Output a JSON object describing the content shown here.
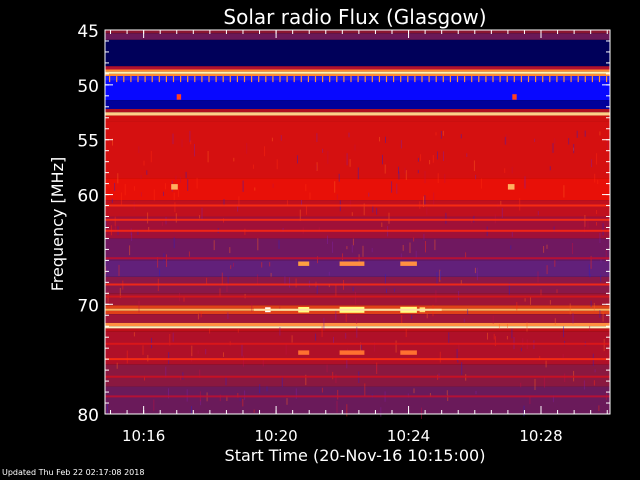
{
  "chart_data": {
    "type": "heatmap",
    "title": "Solar radio Flux (Glasgow)",
    "xlabel": "Start Time (20-Nov-16 10:15:00)",
    "ylabel": "Frequency [MHz]",
    "x_range": [
      "10:14:50",
      "10:30:05"
    ],
    "x_ticks": [
      {
        "time": "10:16",
        "label": "10:16"
      },
      {
        "time": "10:20",
        "label": "10:20"
      },
      {
        "time": "10:24",
        "label": "10:24"
      },
      {
        "time": "10:28",
        "label": "10:28"
      }
    ],
    "y_range": [
      45,
      80
    ],
    "y_ticks": [
      {
        "mhz": 45,
        "label": "45"
      },
      {
        "mhz": 50,
        "label": "50"
      },
      {
        "mhz": 55,
        "label": "55"
      },
      {
        "mhz": 60,
        "label": "60"
      },
      {
        "mhz": 70,
        "label": "70"
      },
      {
        "mhz": 80,
        "label": "80"
      }
    ],
    "bands": [
      {
        "from": 45.0,
        "to": 45.3,
        "color": "#8a1530"
      },
      {
        "from": 45.3,
        "to": 45.9,
        "color": "#6a1858"
      },
      {
        "from": 45.9,
        "to": 48.3,
        "color": "#00005a"
      },
      {
        "from": 48.3,
        "to": 48.6,
        "color": "#b01030"
      },
      {
        "from": 48.6,
        "to": 48.8,
        "color": "#ff8a30"
      },
      {
        "from": 48.8,
        "to": 49.0,
        "color": "#fff0b0"
      },
      {
        "from": 49.0,
        "to": 49.2,
        "color": "#ff8a30"
      },
      {
        "from": 49.2,
        "to": 49.6,
        "color": "#2020ff"
      },
      {
        "from": 49.6,
        "to": 51.4,
        "color": "#0808ff"
      },
      {
        "from": 51.4,
        "to": 52.2,
        "color": "#00009a"
      },
      {
        "from": 52.2,
        "to": 52.5,
        "color": "#b01020"
      },
      {
        "from": 52.5,
        "to": 52.8,
        "color": "#ffd088"
      },
      {
        "from": 52.8,
        "to": 53.3,
        "color": "#d01010"
      },
      {
        "from": 53.3,
        "to": 58.5,
        "color": "#d51010"
      },
      {
        "from": 58.5,
        "to": 60.5,
        "color": "#e81008"
      },
      {
        "from": 60.5,
        "to": 62.0,
        "color": "#c0101e"
      },
      {
        "from": 62.0,
        "to": 64.0,
        "color": "#a01038"
      },
      {
        "from": 64.0,
        "to": 66.0,
        "color": "#701860"
      },
      {
        "from": 66.0,
        "to": 67.5,
        "color": "#62207a"
      },
      {
        "from": 67.5,
        "to": 69.0,
        "color": "#8a1848"
      },
      {
        "from": 69.0,
        "to": 70.1,
        "color": "#a01535"
      },
      {
        "from": 70.1,
        "to": 70.4,
        "color": "#e04018"
      },
      {
        "from": 70.4,
        "to": 70.6,
        "color": "#ffb060"
      },
      {
        "from": 70.6,
        "to": 70.9,
        "color": "#e04018"
      },
      {
        "from": 70.9,
        "to": 71.7,
        "color": "#a01538"
      },
      {
        "from": 71.7,
        "to": 72.0,
        "color": "#ff9040"
      },
      {
        "from": 72.0,
        "to": 72.2,
        "color": "#fff0c0"
      },
      {
        "from": 72.2,
        "to": 72.5,
        "color": "#c01018"
      },
      {
        "from": 72.5,
        "to": 75.5,
        "color": "#b01028"
      },
      {
        "from": 75.5,
        "to": 77.5,
        "color": "#8a1840"
      },
      {
        "from": 77.5,
        "to": 80.0,
        "color": "#6a1a5a"
      }
    ],
    "hlines": [
      {
        "mhz": 61.0,
        "color": "#ff3010"
      },
      {
        "mhz": 62.3,
        "color": "#ff3010"
      },
      {
        "mhz": 63.3,
        "color": "#ff2a10"
      },
      {
        "mhz": 65.8,
        "color": "#c01030"
      },
      {
        "mhz": 68.2,
        "color": "#ff2a10"
      },
      {
        "mhz": 69.3,
        "color": "#d81818"
      },
      {
        "mhz": 73.6,
        "color": "#e01818"
      },
      {
        "mhz": 75.0,
        "color": "#ff3010"
      },
      {
        "mhz": 76.6,
        "color": "#d01020"
      },
      {
        "mhz": 78.4,
        "color": "#c01030"
      }
    ],
    "bursts": [
      {
        "t0": "10:19:40",
        "t1": "10:19:50",
        "mhz": 70.5,
        "h": 0.45,
        "color": "#ffffff"
      },
      {
        "t0": "10:20:40",
        "t1": "10:21:00",
        "mhz": 70.5,
        "h": 0.5,
        "color": "#ffff80"
      },
      {
        "t0": "10:21:55",
        "t1": "10:22:40",
        "mhz": 70.5,
        "h": 0.55,
        "color": "#ffff80"
      },
      {
        "t0": "10:23:45",
        "t1": "10:24:15",
        "mhz": 70.5,
        "h": 0.55,
        "color": "#ffff80"
      },
      {
        "t0": "10:24:20",
        "t1": "10:24:30",
        "mhz": 70.5,
        "h": 0.45,
        "color": "#ffe070"
      },
      {
        "t0": "10:20:40",
        "t1": "10:21:00",
        "mhz": 66.3,
        "h": 0.4,
        "color": "#ffa040"
      },
      {
        "t0": "10:21:55",
        "t1": "10:22:40",
        "mhz": 66.3,
        "h": 0.4,
        "color": "#ff9040"
      },
      {
        "t0": "10:23:45",
        "t1": "10:24:15",
        "mhz": 66.3,
        "h": 0.4,
        "color": "#ff9040"
      },
      {
        "t0": "10:20:40",
        "t1": "10:21:00",
        "mhz": 74.4,
        "h": 0.4,
        "color": "#ff7030"
      },
      {
        "t0": "10:21:55",
        "t1": "10:22:40",
        "mhz": 74.4,
        "h": 0.4,
        "color": "#ff7030"
      },
      {
        "t0": "10:23:45",
        "t1": "10:24:15",
        "mhz": 74.4,
        "h": 0.4,
        "color": "#ff7030"
      },
      {
        "t0": "10:17:00",
        "t1": "10:17:08",
        "mhz": 51.1,
        "h": 0.5,
        "color": "#ff4020"
      },
      {
        "t0": "10:27:08",
        "t1": "10:27:16",
        "mhz": 51.1,
        "h": 0.5,
        "color": "#ff4020"
      },
      {
        "t0": "10:16:50",
        "t1": "10:17:02",
        "mhz": 59.3,
        "h": 0.5,
        "color": "#ffb060"
      },
      {
        "t0": "10:27:00",
        "t1": "10:27:12",
        "mhz": 59.3,
        "h": 0.5,
        "color": "#ffb060"
      }
    ],
    "colors": {
      "background": "#000000",
      "axis": "#ffffff",
      "text": "#ffffff"
    }
  },
  "footer": {
    "updated": "Updated Thu Feb 22 02:17:08 2018"
  }
}
